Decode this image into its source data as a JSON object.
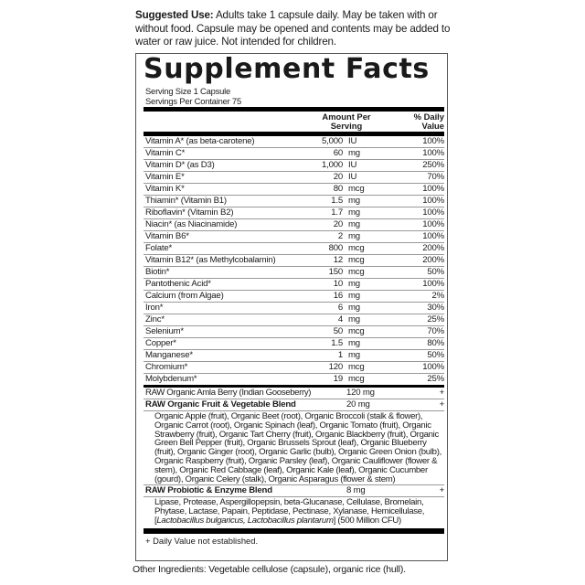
{
  "suggested_use": {
    "label": "Suggested Use:",
    "text": " Adults take 1 capsule daily. May be taken with or without food. Capsule may be opened and contents may be added to water or raw juice. Not intended for children."
  },
  "panel": {
    "title": "Supplement Facts",
    "serving_size": "Serving Size 1 Capsule",
    "servings_per_container": "Servings Per Container 75",
    "col_amount": "Amount Per Serving",
    "col_dv": "% Daily Value",
    "nutrients": [
      {
        "name": "Vitamin A* (as beta-carotene)",
        "num": "5,000",
        "unit": "IU",
        "dv": "100%"
      },
      {
        "name": "Vitamin C*",
        "num": "60",
        "unit": "mg",
        "dv": "100%"
      },
      {
        "name": "Vitamin D* (as D3)",
        "num": "1,000",
        "unit": "IU",
        "dv": "250%"
      },
      {
        "name": "Vitamin E*",
        "num": "20",
        "unit": "IU",
        "dv": "70%"
      },
      {
        "name": "Vitamin K*",
        "num": "80",
        "unit": "mcg",
        "dv": "100%"
      },
      {
        "name": "Thiamin* (Vitamin B1)",
        "num": "1.5",
        "unit": "mg",
        "dv": "100%"
      },
      {
        "name": "Riboflavin* (Vitamin B2)",
        "num": "1.7",
        "unit": "mg",
        "dv": "100%"
      },
      {
        "name": "Niacin* (as Niacinamide)",
        "num": "20",
        "unit": "mg",
        "dv": "100%"
      },
      {
        "name": "Vitamin B6*",
        "num": "2",
        "unit": "mg",
        "dv": "100%"
      },
      {
        "name": "Folate*",
        "num": "800",
        "unit": "mcg",
        "dv": "200%"
      },
      {
        "name": "Vitamin B12* (as Methylcobalamin)",
        "num": "12",
        "unit": "mcg",
        "dv": "200%"
      },
      {
        "name": "Biotin*",
        "num": "150",
        "unit": "mcg",
        "dv": "50%"
      },
      {
        "name": "Pantothenic Acid*",
        "num": "10",
        "unit": "mg",
        "dv": "100%"
      },
      {
        "name": "Calcium (from Algae)",
        "num": "16",
        "unit": "mg",
        "dv": "2%"
      },
      {
        "name": "Iron*",
        "num": "6",
        "unit": "mg",
        "dv": "30%"
      },
      {
        "name": "Zinc*",
        "num": "4",
        "unit": "mg",
        "dv": "25%"
      },
      {
        "name": "Selenium*",
        "num": "50",
        "unit": "mcg",
        "dv": "70%"
      },
      {
        "name": "Copper*",
        "num": "1.5",
        "unit": "mg",
        "dv": "80%"
      },
      {
        "name": "Manganese*",
        "num": "1",
        "unit": "mg",
        "dv": "50%"
      },
      {
        "name": "Chromium*",
        "num": "120",
        "unit": "mcg",
        "dv": "100%"
      },
      {
        "name": "Molybdenum*",
        "num": "19",
        "unit": "mcg",
        "dv": "25%"
      }
    ],
    "amla": {
      "name": "RAW Organic Amla Berry (Indian Gooseberry)",
      "amount": "120 mg",
      "dv": "+"
    },
    "fruit_blend": {
      "name": "RAW Organic Fruit & Vegetable Blend",
      "amount": "20 mg",
      "dv": "+",
      "ingredients": "Organic Apple (fruit), Organic Beet (root), Organic Broccoli (stalk & flower), Organic Carrot (root), Organic Spinach (leaf), Organic Tomato (fruit), Organic Strawberry (fruit), Organic Tart Cherry (fruit), Organic Blackberry (fruit), Organic Green Bell Pepper (fruit), Organic Brussels Sprout (leaf), Organic Blueberry (fruit), Organic Ginger (root), Organic Garlic (bulb), Organic Green Onion (bulb), Organic Raspberry (fruit), Organic Parsley (leaf), Organic Cauliflower (flower & stem), Organic Red Cabbage (leaf), Organic Kale (leaf), Organic Cucumber (gourd), Organic Celery (stalk), Organic Asparagus (flower & stem)"
    },
    "probiotic_blend": {
      "name": "RAW Probiotic & Enzyme Blend",
      "amount": "8 mg",
      "dv": "+",
      "ingredients": "Lipase, Protease, Aspergillopepsin, beta-Glucanase, Cellulase, Bromelain, Phytase, Lactase, Papain, Peptidase, Pectinase, Xylanase, Hemicellulase, [",
      "ingredients_italic": "Lactobacillus bulgaricus, Lactobacillus plantarum",
      "ingredients_tail": "] (500 Million CFU)"
    },
    "footnote": "+ Daily Value not established."
  },
  "other_ingredients": "Other Ingredients: Vegetable cellulose (capsule), organic rice (hull)."
}
